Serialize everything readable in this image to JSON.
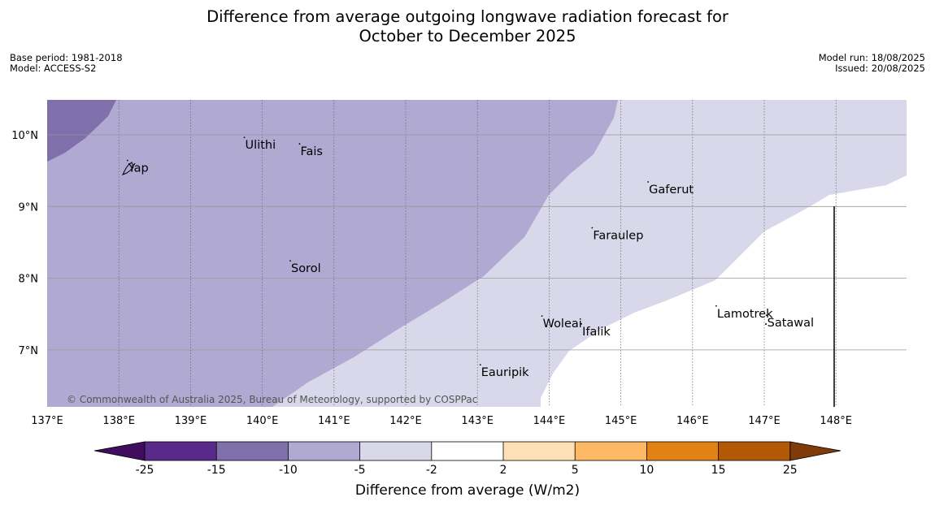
{
  "title": {
    "line1": "Difference from average outgoing longwave radiation forecast for",
    "line2": "October to December 2025"
  },
  "meta": {
    "base_period": "Base period: 1981-2018",
    "model": "Model: ACCESS-S2",
    "model_run": "Model run: 18/08/2025",
    "issued": "Issued: 20/08/2025"
  },
  "map": {
    "lon_range": [
      137,
      149
    ],
    "lat_range": [
      6.2,
      10.5
    ],
    "lon_labels": [
      "137°E",
      "138°E",
      "139°E",
      "140°E",
      "141°E",
      "142°E",
      "143°E",
      "144°E",
      "145°E",
      "146°E",
      "147°E",
      "148°E"
    ],
    "lat_labels": [
      "10°N",
      "9°N",
      "8°N",
      "7°N"
    ],
    "places": [
      {
        "name": "Ulithi",
        "lon": 139.75,
        "lat": 9.85
      },
      {
        "name": "Fais",
        "lon": 140.52,
        "lat": 9.76
      },
      {
        "name": "Yap",
        "lon": 138.12,
        "lat": 9.53
      },
      {
        "name": "Gaferut",
        "lon": 145.38,
        "lat": 9.23
      },
      {
        "name": "Faraulep",
        "lon": 144.6,
        "lat": 8.59
      },
      {
        "name": "Sorol",
        "lon": 140.39,
        "lat": 8.13
      },
      {
        "name": "Woleai",
        "lon": 143.9,
        "lat": 7.36
      },
      {
        "name": "Ifalik",
        "lon": 144.45,
        "lat": 7.25
      },
      {
        "name": "Lamotrek",
        "lon": 146.33,
        "lat": 7.5
      },
      {
        "name": "Satawal",
        "lon": 147.03,
        "lat": 7.37
      },
      {
        "name": "Eauripik",
        "lon": 143.04,
        "lat": 6.68
      }
    ],
    "copyright": "© Commonwealth of Australia 2025, Bureau of Meteorology, supported by COSPPac",
    "colors": {
      "lt_-15": "#7f6faa",
      "-15_-10": "#b0a9d1",
      "-10_-5": "#d8d8ea",
      "-5_-2": "#d8d8ea",
      "-2_2": "#ffffff",
      "grid": "#999999"
    }
  },
  "colorbar": {
    "title": "Difference from average (W/m2)",
    "ticks": [
      "-25",
      "-15",
      "-10",
      "-5",
      "-2",
      "2",
      "5",
      "10",
      "15",
      "25"
    ],
    "colors": [
      "#3f0f5e",
      "#5a2a8a",
      "#7f6faa",
      "#b0a9d1",
      "#d8d8ea",
      "#ffffff",
      "#fee0b6",
      "#fdb863",
      "#e08214",
      "#b35806",
      "#7f3b08"
    ]
  }
}
